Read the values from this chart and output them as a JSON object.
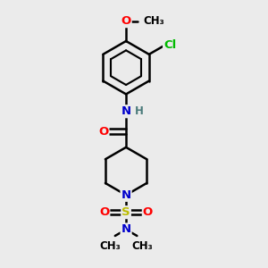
{
  "background_color": "#ebebeb",
  "bond_color": "#000000",
  "bond_width": 1.8,
  "atom_colors": {
    "O": "#ff0000",
    "N": "#0000cc",
    "S": "#bbbb00",
    "Cl": "#00bb00",
    "C": "#000000",
    "H": "#4a7a7a"
  },
  "font_size": 9.5,
  "fig_width": 3.0,
  "fig_height": 3.0,
  "dpi": 100,
  "xlim": [
    0,
    10
  ],
  "ylim": [
    0,
    10
  ]
}
